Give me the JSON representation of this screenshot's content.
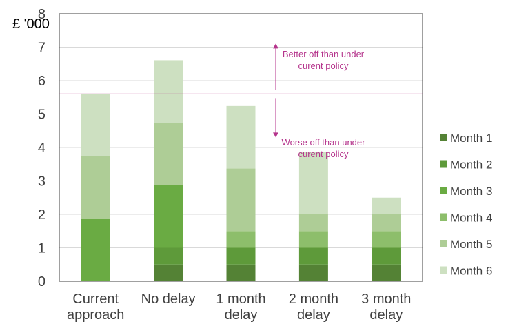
{
  "chart_data": {
    "type": "bar",
    "stacked": true,
    "y_unit_label": "£ '000",
    "ylim": [
      0,
      8
    ],
    "yticks": [
      0,
      1,
      2,
      3,
      4,
      5,
      6,
      7,
      8
    ],
    "grid": true,
    "legend_position": "right",
    "categories": [
      [
        "Current",
        "approach"
      ],
      [
        "No delay"
      ],
      [
        "1 month",
        "delay"
      ],
      [
        "2 month",
        "delay"
      ],
      [
        "3 month",
        "delay"
      ]
    ],
    "series": [
      {
        "name": "Month 1",
        "color": "#548235",
        "values": [
          0,
          0.5,
          0.5,
          0.5,
          0.5
        ]
      },
      {
        "name": "Month 2",
        "color": "#5e9a3a",
        "values": [
          0,
          0.5,
          0.5,
          0.5,
          0.5
        ]
      },
      {
        "name": "Month 3",
        "color": "#6aab43",
        "values": [
          1.87,
          1.87,
          0,
          0,
          0
        ]
      },
      {
        "name": "Month 4",
        "color": "#8dbe6b",
        "values": [
          0,
          0,
          0.5,
          0.5,
          0.5
        ]
      },
      {
        "name": "Month 5",
        "color": "#aecd96",
        "values": [
          1.87,
          1.87,
          1.87,
          0.5,
          0.5
        ]
      },
      {
        "name": "Month 6",
        "color": "#cde0c1",
        "values": [
          1.87,
          1.87,
          1.87,
          1.87,
          0.5
        ]
      }
    ],
    "reference_line": {
      "value": 5.6,
      "color": "#b5348c"
    },
    "annotations": {
      "above": [
        "Better off than under",
        "curent policy"
      ],
      "below": [
        "Worse off than under",
        "curent policy"
      ],
      "color": "#b5348c"
    }
  }
}
